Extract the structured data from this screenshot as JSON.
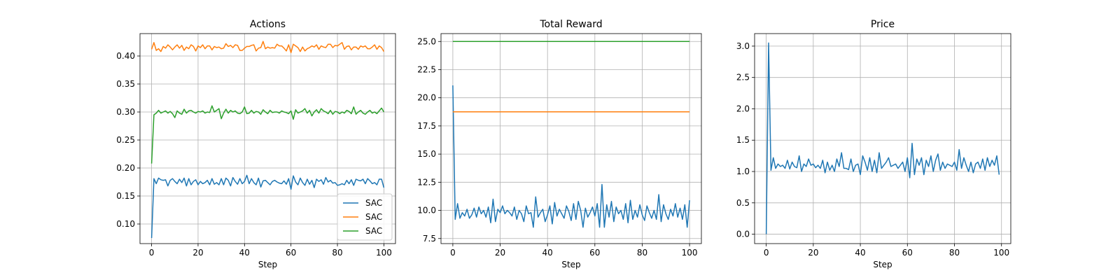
{
  "chart_data": [
    {
      "type": "line",
      "title": "Actions",
      "xlabel": "Step",
      "ylabel": "",
      "xlim": [
        -5,
        105
      ],
      "ylim": [
        0.065,
        0.44
      ],
      "xticks": [
        0,
        20,
        40,
        60,
        80,
        100
      ],
      "xtick_labels": [
        "0",
        "20",
        "40",
        "60",
        "80",
        "100"
      ],
      "yticks": [
        0.1,
        0.15,
        0.2,
        0.25,
        0.3,
        0.35,
        0.4
      ],
      "ytick_labels": [
        "0.10",
        "0.15",
        "0.20",
        "0.25",
        "0.30",
        "0.35",
        "0.40"
      ],
      "grid": true,
      "legend": {
        "position": "lower right",
        "entries": [
          "SAC",
          "SAC",
          "SAC"
        ]
      },
      "x": [
        0,
        1,
        2,
        3,
        4,
        5,
        6,
        7,
        8,
        9,
        10,
        11,
        12,
        13,
        14,
        15,
        16,
        17,
        18,
        19,
        20,
        21,
        22,
        23,
        24,
        25,
        26,
        27,
        28,
        29,
        30,
        31,
        32,
        33,
        34,
        35,
        36,
        37,
        38,
        39,
        40,
        41,
        42,
        43,
        44,
        45,
        46,
        47,
        48,
        49,
        50,
        51,
        52,
        53,
        54,
        55,
        56,
        57,
        58,
        59,
        60,
        61,
        62,
        63,
        64,
        65,
        66,
        67,
        68,
        69,
        70,
        71,
        72,
        73,
        74,
        75,
        76,
        77,
        78,
        79,
        80,
        81,
        82,
        83,
        84,
        85,
        86,
        87,
        88,
        89,
        90,
        91,
        92,
        93,
        94,
        95,
        96,
        97,
        98,
        99,
        100
      ],
      "series": [
        {
          "name": "SAC",
          "color": "#1f77b4",
          "values": [
            0.075,
            0.181,
            0.172,
            0.182,
            0.179,
            0.178,
            0.179,
            0.168,
            0.178,
            0.181,
            0.176,
            0.172,
            0.18,
            0.174,
            0.182,
            0.168,
            0.181,
            0.17,
            0.176,
            0.179,
            0.17,
            0.176,
            0.172,
            0.174,
            0.178,
            0.17,
            0.181,
            0.171,
            0.174,
            0.17,
            0.181,
            0.17,
            0.182,
            0.178,
            0.168,
            0.183,
            0.176,
            0.171,
            0.181,
            0.172,
            0.176,
            0.187,
            0.172,
            0.181,
            0.174,
            0.17,
            0.182,
            0.166,
            0.177,
            0.178,
            0.174,
            0.17,
            0.176,
            0.178,
            0.175,
            0.173,
            0.172,
            0.177,
            0.171,
            0.181,
            0.162,
            0.186,
            0.175,
            0.17,
            0.182,
            0.174,
            0.169,
            0.18,
            0.171,
            0.178,
            0.165,
            0.18,
            0.176,
            0.179,
            0.171,
            0.183,
            0.175,
            0.178,
            0.173,
            0.174,
            0.169,
            0.17,
            0.172,
            0.17,
            0.178,
            0.172,
            0.179,
            0.169,
            0.18,
            0.178,
            0.177,
            0.18,
            0.172,
            0.181,
            0.177,
            0.172,
            0.174,
            0.17,
            0.18,
            0.18,
            0.165
          ]
        },
        {
          "name": "SAC",
          "color": "#ff7f0e",
          "values": [
            0.412,
            0.424,
            0.41,
            0.413,
            0.408,
            0.417,
            0.414,
            0.42,
            0.416,
            0.411,
            0.416,
            0.42,
            0.414,
            0.419,
            0.41,
            0.416,
            0.413,
            0.42,
            0.417,
            0.409,
            0.418,
            0.415,
            0.42,
            0.413,
            0.418,
            0.418,
            0.411,
            0.417,
            0.415,
            0.416,
            0.413,
            0.414,
            0.422,
            0.417,
            0.419,
            0.415,
            0.42,
            0.419,
            0.41,
            0.41,
            0.414,
            0.417,
            0.417,
            0.419,
            0.42,
            0.409,
            0.414,
            0.415,
            0.426,
            0.413,
            0.416,
            0.414,
            0.415,
            0.414,
            0.421,
            0.418,
            0.418,
            0.414,
            0.409,
            0.42,
            0.406,
            0.421,
            0.418,
            0.415,
            0.408,
            0.416,
            0.409,
            0.413,
            0.415,
            0.418,
            0.416,
            0.42,
            0.412,
            0.418,
            0.416,
            0.415,
            0.421,
            0.421,
            0.415,
            0.419,
            0.418,
            0.421,
            0.424,
            0.412,
            0.417,
            0.418,
            0.411,
            0.416,
            0.416,
            0.412,
            0.418,
            0.416,
            0.418,
            0.413,
            0.413,
            0.416,
            0.42,
            0.412,
            0.418,
            0.415,
            0.408
          ]
        },
        {
          "name": "SAC",
          "color": "#2ca02c",
          "values": [
            0.208,
            0.295,
            0.298,
            0.303,
            0.298,
            0.3,
            0.302,
            0.298,
            0.301,
            0.297,
            0.29,
            0.302,
            0.298,
            0.296,
            0.305,
            0.298,
            0.302,
            0.303,
            0.3,
            0.298,
            0.301,
            0.3,
            0.302,
            0.298,
            0.3,
            0.299,
            0.311,
            0.3,
            0.303,
            0.306,
            0.288,
            0.298,
            0.305,
            0.298,
            0.303,
            0.3,
            0.302,
            0.298,
            0.297,
            0.3,
            0.309,
            0.297,
            0.298,
            0.303,
            0.298,
            0.301,
            0.3,
            0.296,
            0.304,
            0.3,
            0.297,
            0.303,
            0.299,
            0.3,
            0.3,
            0.298,
            0.302,
            0.3,
            0.299,
            0.297,
            0.302,
            0.287,
            0.304,
            0.298,
            0.3,
            0.302,
            0.306,
            0.298,
            0.303,
            0.293,
            0.3,
            0.304,
            0.298,
            0.306,
            0.302,
            0.3,
            0.297,
            0.303,
            0.296,
            0.301,
            0.3,
            0.297,
            0.3,
            0.298,
            0.303,
            0.301,
            0.297,
            0.309,
            0.296,
            0.3,
            0.303,
            0.298,
            0.296,
            0.3,
            0.303,
            0.298,
            0.3,
            0.297,
            0.302,
            0.307,
            0.3
          ]
        }
      ]
    },
    {
      "type": "line",
      "title": "Total Reward",
      "xlabel": "Step",
      "ylabel": "",
      "xlim": [
        -5,
        105
      ],
      "ylim": [
        7.05,
        25.7
      ],
      "xticks": [
        0,
        20,
        40,
        60,
        80,
        100
      ],
      "xtick_labels": [
        "0",
        "20",
        "40",
        "60",
        "80",
        "100"
      ],
      "yticks": [
        7.5,
        10.0,
        12.5,
        15.0,
        17.5,
        20.0,
        22.5,
        25.0
      ],
      "ytick_labels": [
        "7.5",
        "10.0",
        "12.5",
        "15.0",
        "17.5",
        "20.0",
        "22.5",
        "25.0"
      ],
      "grid": true,
      "x": [
        0,
        1,
        2,
        3,
        4,
        5,
        6,
        7,
        8,
        9,
        10,
        11,
        12,
        13,
        14,
        15,
        16,
        17,
        18,
        19,
        20,
        21,
        22,
        23,
        24,
        25,
        26,
        27,
        28,
        29,
        30,
        31,
        32,
        33,
        34,
        35,
        36,
        37,
        38,
        39,
        40,
        41,
        42,
        43,
        44,
        45,
        46,
        47,
        48,
        49,
        50,
        51,
        52,
        53,
        54,
        55,
        56,
        57,
        58,
        59,
        60,
        61,
        62,
        63,
        64,
        65,
        66,
        67,
        68,
        69,
        70,
        71,
        72,
        73,
        74,
        75,
        76,
        77,
        78,
        79,
        80,
        81,
        82,
        83,
        84,
        85,
        86,
        87,
        88,
        89,
        90,
        91,
        92,
        93,
        94,
        95,
        96,
        97,
        98,
        99,
        100
      ],
      "series": [
        {
          "color": "#1f77b4",
          "values": [
            21.1,
            9.2,
            10.6,
            9.3,
            9.8,
            9.5,
            10.1,
            9.3,
            9.6,
            10.2,
            9.4,
            10.3,
            9.7,
            10.0,
            9.4,
            10.3,
            8.9,
            11.0,
            9.0,
            10.1,
            9.8,
            10.4,
            9.7,
            10.0,
            9.8,
            9.5,
            10.3,
            9.2,
            10.0,
            9.7,
            9.0,
            10.4,
            9.7,
            9.8,
            8.5,
            11.2,
            9.4,
            9.8,
            10.1,
            9.0,
            9.6,
            10.4,
            8.8,
            10.7,
            9.5,
            10.1,
            9.7,
            9.3,
            10.4,
            9.9,
            9.1,
            10.6,
            9.2,
            10.8,
            10.0,
            8.5,
            10.2,
            9.4,
            9.8,
            10.3,
            9.5,
            10.6,
            8.5,
            12.3,
            8.5,
            10.5,
            9.4,
            10.8,
            9.0,
            10.3,
            9.7,
            10.0,
            9.2,
            10.6,
            8.9,
            10.9,
            9.2,
            10.0,
            9.4,
            10.5,
            9.6,
            9.1,
            10.4,
            9.8,
            9.3,
            10.0,
            9.2,
            11.4,
            9.0,
            10.5,
            9.7,
            9.2,
            10.1,
            9.5,
            10.6,
            9.4,
            10.2,
            9.2,
            10.5,
            8.5,
            10.9
          ]
        },
        {
          "color": "#ff7f0e",
          "values": [
            18.75,
            18.75,
            18.75,
            18.75,
            18.75,
            18.75,
            18.75,
            18.75,
            18.75,
            18.75,
            18.75,
            18.75,
            18.75,
            18.75,
            18.75,
            18.75,
            18.75,
            18.75,
            18.75,
            18.75,
            18.75,
            18.75,
            18.75,
            18.75,
            18.75,
            18.75,
            18.75,
            18.75,
            18.75,
            18.75,
            18.75,
            18.75,
            18.75,
            18.75,
            18.75,
            18.75,
            18.75,
            18.75,
            18.75,
            18.75,
            18.75,
            18.75,
            18.75,
            18.75,
            18.75,
            18.75,
            18.75,
            18.75,
            18.75,
            18.75,
            18.75,
            18.75,
            18.75,
            18.75,
            18.75,
            18.75,
            18.75,
            18.75,
            18.75,
            18.75,
            18.75,
            18.75,
            18.75,
            18.75,
            18.75,
            18.75,
            18.75,
            18.75,
            18.75,
            18.75,
            18.75,
            18.75,
            18.75,
            18.75,
            18.75,
            18.75,
            18.75,
            18.75,
            18.75,
            18.75,
            18.75,
            18.75,
            18.75,
            18.75,
            18.75,
            18.75,
            18.75,
            18.75,
            18.75,
            18.75,
            18.75,
            18.75,
            18.75,
            18.75,
            18.75,
            18.75,
            18.75,
            18.75,
            18.75,
            18.75,
            18.75
          ]
        },
        {
          "color": "#2ca02c",
          "values": [
            25.0,
            25.0,
            25.0,
            25.0,
            25.0,
            25.0,
            25.0,
            25.0,
            25.0,
            25.0,
            25.0,
            25.0,
            25.0,
            25.0,
            25.0,
            25.0,
            25.0,
            25.0,
            25.0,
            25.0,
            25.0,
            25.0,
            25.0,
            25.0,
            25.0,
            25.0,
            25.0,
            25.0,
            25.0,
            25.0,
            25.0,
            25.0,
            25.0,
            25.0,
            25.0,
            25.0,
            25.0,
            25.0,
            25.0,
            25.0,
            25.0,
            25.0,
            25.0,
            25.0,
            25.0,
            25.0,
            25.0,
            25.0,
            25.0,
            25.0,
            25.0,
            25.0,
            25.0,
            25.0,
            25.0,
            25.0,
            25.0,
            25.0,
            25.0,
            25.0,
            25.0,
            25.0,
            25.0,
            25.0,
            25.0,
            25.0,
            25.0,
            25.0,
            25.0,
            25.0,
            25.0,
            25.0,
            25.0,
            25.0,
            25.0,
            25.0,
            25.0,
            25.0,
            25.0,
            25.0,
            25.0,
            25.0,
            25.0,
            25.0,
            25.0,
            25.0,
            25.0,
            25.0,
            25.0,
            25.0,
            25.0,
            25.0,
            25.0,
            25.0,
            25.0,
            25.0,
            25.0,
            25.0,
            25.0,
            25.0,
            25.0
          ]
        }
      ]
    },
    {
      "type": "line",
      "title": "Price",
      "xlabel": "Step",
      "ylabel": "",
      "xlim": [
        -4.95,
        103.95
      ],
      "ylim": [
        -0.15,
        3.2
      ],
      "xticks": [
        0,
        20,
        40,
        60,
        80,
        100
      ],
      "xtick_labels": [
        "0",
        "20",
        "40",
        "60",
        "80",
        "100"
      ],
      "yticks": [
        0.0,
        0.5,
        1.0,
        1.5,
        2.0,
        2.5,
        3.0
      ],
      "ytick_labels": [
        "0.0",
        "0.5",
        "1.0",
        "1.5",
        "2.0",
        "2.5",
        "3.0"
      ],
      "grid": true,
      "x": [
        0,
        1,
        2,
        3,
        4,
        5,
        6,
        7,
        8,
        9,
        10,
        11,
        12,
        13,
        14,
        15,
        16,
        17,
        18,
        19,
        20,
        21,
        22,
        23,
        24,
        25,
        26,
        27,
        28,
        29,
        30,
        31,
        32,
        33,
        34,
        35,
        36,
        37,
        38,
        39,
        40,
        41,
        42,
        43,
        44,
        45,
        46,
        47,
        48,
        49,
        50,
        51,
        52,
        53,
        54,
        55,
        56,
        57,
        58,
        59,
        60,
        61,
        62,
        63,
        64,
        65,
        66,
        67,
        68,
        69,
        70,
        71,
        72,
        73,
        74,
        75,
        76,
        77,
        78,
        79,
        80,
        81,
        82,
        83,
        84,
        85,
        86,
        87,
        88,
        89,
        90,
        91,
        92,
        93,
        94,
        95,
        96,
        97,
        98,
        99
      ],
      "series": [
        {
          "color": "#1f77b4",
          "values": [
            0.0,
            3.05,
            1.02,
            1.22,
            1.05,
            1.12,
            1.08,
            1.1,
            1.05,
            1.18,
            1.04,
            1.15,
            1.08,
            1.06,
            1.25,
            1.0,
            1.12,
            1.08,
            1.2,
            1.1,
            1.12,
            1.06,
            1.1,
            1.05,
            1.18,
            0.98,
            1.15,
            1.02,
            1.1,
            1.0,
            1.2,
            1.08,
            1.3,
            1.05,
            1.05,
            1.03,
            1.2,
            1.0,
            1.1,
            1.12,
            0.95,
            1.25,
            1.15,
            1.02,
            1.22,
            1.0,
            1.18,
            0.98,
            1.3,
            1.05,
            1.1,
            1.15,
            1.22,
            1.08,
            1.1,
            1.12,
            1.05,
            1.1,
            1.15,
            1.0,
            1.22,
            0.9,
            1.45,
            0.95,
            1.2,
            1.1,
            1.22,
            0.95,
            1.18,
            1.08,
            1.25,
            1.0,
            1.18,
            1.28,
            1.02,
            1.15,
            1.05,
            1.12,
            1.1,
            1.08,
            1.15,
            1.02,
            1.35,
            1.05,
            1.22,
            1.1,
            1.0,
            1.15,
            0.98,
            1.12,
            1.15,
            1.05,
            1.2,
            1.02,
            1.22,
            1.08,
            1.18,
            1.1,
            1.25,
            0.95
          ]
        }
      ]
    }
  ]
}
